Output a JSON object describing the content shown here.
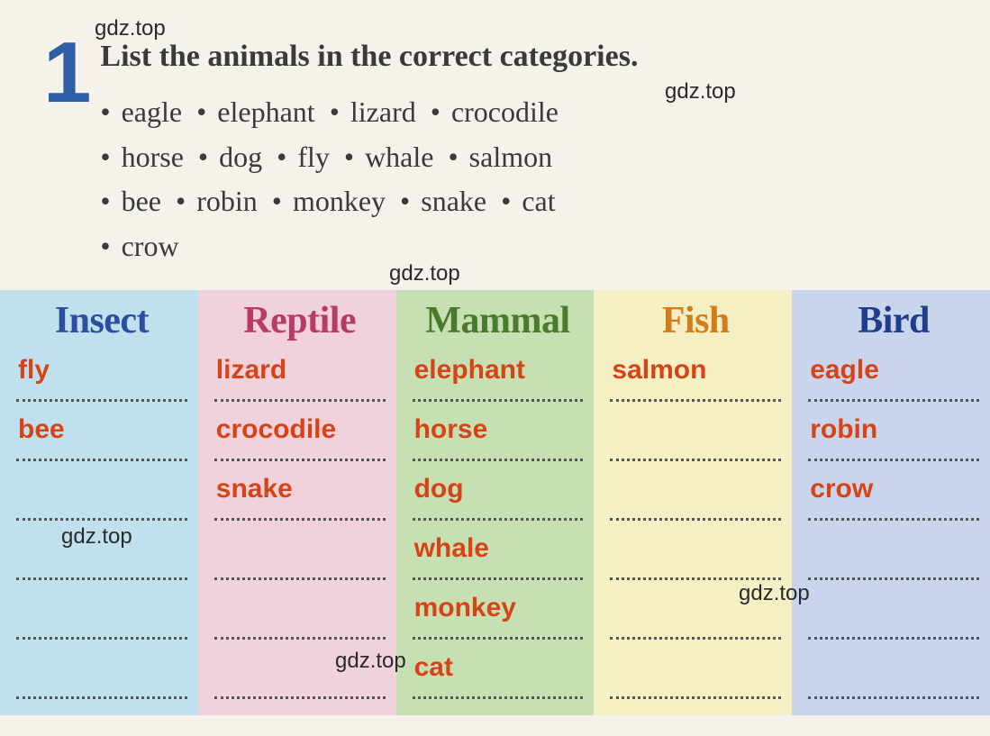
{
  "watermarks": {
    "text": "gdz.top"
  },
  "exercise": {
    "number": "1",
    "instruction": "List the animals in the correct categories.",
    "words": [
      "eagle",
      "elephant",
      "lizard",
      "crocodile",
      "horse",
      "dog",
      "fly",
      "whale",
      "salmon",
      "bee",
      "robin",
      "monkey",
      "snake",
      "cat",
      "crow"
    ]
  },
  "table": {
    "columns": [
      {
        "title": "Insect",
        "header_color": "#2b4fa0",
        "bg_color": "#bfe0ec",
        "answers": [
          "fly",
          "bee",
          "",
          "",
          "",
          ""
        ]
      },
      {
        "title": "Reptile",
        "header_color": "#b83a66",
        "bg_color": "#f1d1dc",
        "answers": [
          "lizard",
          "crocodile",
          "snake",
          "",
          "",
          ""
        ]
      },
      {
        "title": "Mammal",
        "header_color": "#4a7b2d",
        "bg_color": "#c7e0b3",
        "answers": [
          "elephant",
          "horse",
          "dog",
          "whale",
          "monkey",
          "cat"
        ]
      },
      {
        "title": "Fish",
        "header_color": "#d57b1a",
        "bg_color": "#f5efc4",
        "answers": [
          "salmon",
          "",
          "",
          "",
          "",
          ""
        ]
      },
      {
        "title": "Bird",
        "header_color": "#1f3d8a",
        "bg_color": "#c9d5ec",
        "answers": [
          "eagle",
          "robin",
          "crow",
          "",
          "",
          ""
        ]
      }
    ],
    "rows_per_column": 6,
    "answer_color": "#d84315",
    "answer_fontsize": 30,
    "title_fontsize": 42,
    "dotted_line_color": "#555555"
  },
  "colors": {
    "page_bg": "#f5f2ec",
    "exercise_number": "#2e5fa6",
    "instruction_text": "#3a3a3a"
  }
}
